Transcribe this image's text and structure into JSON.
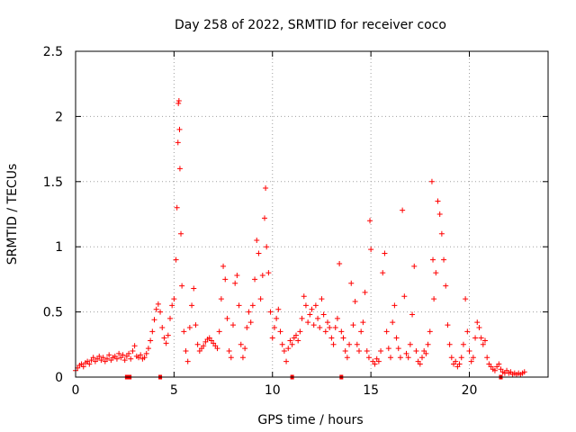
{
  "chart_data": {
    "type": "scatter",
    "title": "Day 258 of 2022, SRMTID for receiver coco",
    "xlabel": "GPS time / hours",
    "ylabel": "SRMTID / TECUs",
    "xlim": [
      0,
      24
    ],
    "ylim": [
      0,
      2.5
    ],
    "grid": true,
    "x_ticks": [
      "0",
      "5",
      "10",
      "15",
      "20"
    ],
    "y_ticks": [
      "0",
      "0.5",
      "1",
      "1.5",
      "2",
      "2.5"
    ],
    "marker_color": "#ff0000",
    "series": [
      {
        "name": "SRMTID",
        "marker": "plus",
        "points": [
          [
            0.0,
            0.05
          ],
          [
            0.1,
            0.07
          ],
          [
            0.2,
            0.09
          ],
          [
            0.3,
            0.1
          ],
          [
            0.4,
            0.08
          ],
          [
            0.5,
            0.11
          ],
          [
            0.6,
            0.12
          ],
          [
            0.7,
            0.1
          ],
          [
            0.8,
            0.13
          ],
          [
            0.9,
            0.15
          ],
          [
            1.0,
            0.12
          ],
          [
            1.1,
            0.14
          ],
          [
            1.2,
            0.16
          ],
          [
            1.3,
            0.13
          ],
          [
            1.4,
            0.15
          ],
          [
            1.5,
            0.12
          ],
          [
            1.6,
            0.14
          ],
          [
            1.7,
            0.17
          ],
          [
            1.8,
            0.13
          ],
          [
            1.9,
            0.15
          ],
          [
            2.0,
            0.16
          ],
          [
            2.1,
            0.14
          ],
          [
            2.2,
            0.18
          ],
          [
            2.3,
            0.15
          ],
          [
            2.4,
            0.17
          ],
          [
            2.5,
            0.13
          ],
          [
            2.6,
            0.16
          ],
          [
            2.7,
            0.18
          ],
          [
            2.8,
            0.14
          ],
          [
            2.9,
            0.2
          ],
          [
            3.0,
            0.24
          ],
          [
            3.1,
            0.16
          ],
          [
            3.2,
            0.15
          ],
          [
            3.3,
            0.17
          ],
          [
            3.4,
            0.14
          ],
          [
            3.5,
            0.15
          ],
          [
            3.6,
            0.18
          ],
          [
            3.7,
            0.22
          ],
          [
            3.8,
            0.28
          ],
          [
            3.9,
            0.35
          ],
          [
            4.0,
            0.44
          ],
          [
            4.1,
            0.52
          ],
          [
            4.2,
            0.56
          ],
          [
            4.3,
            0.5
          ],
          [
            4.4,
            0.38
          ],
          [
            4.5,
            0.3
          ],
          [
            4.6,
            0.26
          ],
          [
            4.7,
            0.32
          ],
          [
            4.8,
            0.45
          ],
          [
            4.9,
            0.55
          ],
          [
            5.0,
            0.6
          ],
          [
            5.1,
            0.9
          ],
          [
            5.15,
            1.3
          ],
          [
            5.2,
            1.8
          ],
          [
            5.22,
            2.1
          ],
          [
            5.25,
            2.12
          ],
          [
            5.28,
            1.9
          ],
          [
            5.3,
            1.6
          ],
          [
            5.35,
            1.1
          ],
          [
            5.4,
            0.7
          ],
          [
            5.5,
            0.35
          ],
          [
            5.6,
            0.2
          ],
          [
            5.7,
            0.12
          ],
          [
            5.8,
            0.38
          ],
          [
            5.9,
            0.55
          ],
          [
            6.0,
            0.68
          ],
          [
            6.1,
            0.4
          ],
          [
            6.2,
            0.25
          ],
          [
            6.3,
            0.2
          ],
          [
            6.4,
            0.22
          ],
          [
            6.5,
            0.24
          ],
          [
            6.6,
            0.27
          ],
          [
            6.7,
            0.29
          ],
          [
            6.8,
            0.3
          ],
          [
            6.9,
            0.28
          ],
          [
            7.0,
            0.26
          ],
          [
            7.1,
            0.24
          ],
          [
            7.2,
            0.22
          ],
          [
            7.3,
            0.35
          ],
          [
            7.4,
            0.6
          ],
          [
            7.5,
            0.85
          ],
          [
            7.6,
            0.75
          ],
          [
            7.7,
            0.45
          ],
          [
            7.8,
            0.2
          ],
          [
            7.9,
            0.15
          ],
          [
            8.0,
            0.4
          ],
          [
            8.1,
            0.72
          ],
          [
            8.2,
            0.78
          ],
          [
            8.3,
            0.55
          ],
          [
            8.4,
            0.25
          ],
          [
            8.5,
            0.15
          ],
          [
            8.6,
            0.22
          ],
          [
            8.7,
            0.38
          ],
          [
            8.8,
            0.5
          ],
          [
            8.9,
            0.42
          ],
          [
            9.0,
            0.55
          ],
          [
            9.1,
            0.75
          ],
          [
            9.2,
            1.05
          ],
          [
            9.3,
            0.95
          ],
          [
            9.4,
            0.6
          ],
          [
            9.5,
            0.78
          ],
          [
            9.6,
            1.22
          ],
          [
            9.65,
            1.45
          ],
          [
            9.7,
            1.0
          ],
          [
            9.8,
            0.8
          ],
          [
            9.9,
            0.5
          ],
          [
            10.0,
            0.3
          ],
          [
            10.1,
            0.38
          ],
          [
            10.2,
            0.45
          ],
          [
            10.3,
            0.52
          ],
          [
            10.4,
            0.35
          ],
          [
            10.5,
            0.25
          ],
          [
            10.6,
            0.2
          ],
          [
            10.7,
            0.12
          ],
          [
            10.8,
            0.22
          ],
          [
            10.9,
            0.28
          ],
          [
            11.0,
            0.25
          ],
          [
            11.1,
            0.3
          ],
          [
            11.2,
            0.32
          ],
          [
            11.3,
            0.28
          ],
          [
            11.4,
            0.35
          ],
          [
            11.5,
            0.45
          ],
          [
            11.6,
            0.62
          ],
          [
            11.7,
            0.55
          ],
          [
            11.8,
            0.42
          ],
          [
            11.9,
            0.48
          ],
          [
            12.0,
            0.52
          ],
          [
            12.1,
            0.4
          ],
          [
            12.2,
            0.55
          ],
          [
            12.3,
            0.45
          ],
          [
            12.4,
            0.38
          ],
          [
            12.5,
            0.6
          ],
          [
            12.6,
            0.48
          ],
          [
            12.7,
            0.35
          ],
          [
            12.8,
            0.42
          ],
          [
            12.9,
            0.38
          ],
          [
            13.0,
            0.3
          ],
          [
            13.1,
            0.25
          ],
          [
            13.2,
            0.38
          ],
          [
            13.3,
            0.45
          ],
          [
            13.4,
            0.87
          ],
          [
            13.5,
            0.35
          ],
          [
            13.6,
            0.3
          ],
          [
            13.7,
            0.2
          ],
          [
            13.8,
            0.15
          ],
          [
            13.9,
            0.25
          ],
          [
            14.0,
            0.72
          ],
          [
            14.1,
            0.4
          ],
          [
            14.2,
            0.58
          ],
          [
            14.3,
            0.25
          ],
          [
            14.4,
            0.2
          ],
          [
            14.5,
            0.35
          ],
          [
            14.6,
            0.42
          ],
          [
            14.7,
            0.65
          ],
          [
            14.8,
            0.2
          ],
          [
            14.9,
            0.15
          ],
          [
            14.95,
            1.2
          ],
          [
            15.0,
            0.98
          ],
          [
            15.1,
            0.12
          ],
          [
            15.2,
            0.1
          ],
          [
            15.3,
            0.14
          ],
          [
            15.4,
            0.12
          ],
          [
            15.5,
            0.2
          ],
          [
            15.6,
            0.8
          ],
          [
            15.7,
            0.95
          ],
          [
            15.8,
            0.35
          ],
          [
            15.9,
            0.22
          ],
          [
            16.0,
            0.15
          ],
          [
            16.1,
            0.42
          ],
          [
            16.2,
            0.55
          ],
          [
            16.3,
            0.3
          ],
          [
            16.4,
            0.22
          ],
          [
            16.5,
            0.15
          ],
          [
            16.6,
            1.28
          ],
          [
            16.7,
            0.62
          ],
          [
            16.8,
            0.18
          ],
          [
            16.9,
            0.15
          ],
          [
            17.0,
            0.25
          ],
          [
            17.1,
            0.48
          ],
          [
            17.2,
            0.85
          ],
          [
            17.3,
            0.2
          ],
          [
            17.4,
            0.12
          ],
          [
            17.5,
            0.1
          ],
          [
            17.6,
            0.15
          ],
          [
            17.7,
            0.2
          ],
          [
            17.8,
            0.18
          ],
          [
            17.9,
            0.25
          ],
          [
            18.0,
            0.35
          ],
          [
            18.1,
            1.5
          ],
          [
            18.15,
            0.9
          ],
          [
            18.2,
            0.6
          ],
          [
            18.3,
            0.8
          ],
          [
            18.4,
            1.35
          ],
          [
            18.5,
            1.25
          ],
          [
            18.6,
            1.1
          ],
          [
            18.7,
            0.9
          ],
          [
            18.8,
            0.7
          ],
          [
            18.9,
            0.4
          ],
          [
            19.0,
            0.25
          ],
          [
            19.1,
            0.15
          ],
          [
            19.2,
            0.1
          ],
          [
            19.3,
            0.12
          ],
          [
            19.4,
            0.08
          ],
          [
            19.5,
            0.1
          ],
          [
            19.6,
            0.15
          ],
          [
            19.7,
            0.25
          ],
          [
            19.8,
            0.6
          ],
          [
            19.9,
            0.35
          ],
          [
            20.0,
            0.2
          ],
          [
            20.1,
            0.12
          ],
          [
            20.2,
            0.15
          ],
          [
            20.3,
            0.3
          ],
          [
            20.4,
            0.42
          ],
          [
            20.5,
            0.38
          ],
          [
            20.6,
            0.3
          ],
          [
            20.7,
            0.25
          ],
          [
            20.8,
            0.28
          ],
          [
            20.9,
            0.15
          ],
          [
            21.0,
            0.1
          ],
          [
            21.1,
            0.08
          ],
          [
            21.2,
            0.06
          ],
          [
            21.3,
            0.05
          ],
          [
            21.4,
            0.08
          ],
          [
            21.5,
            0.1
          ],
          [
            21.6,
            0.06
          ],
          [
            21.7,
            0.04
          ],
          [
            21.8,
            0.03
          ],
          [
            21.9,
            0.05
          ],
          [
            22.0,
            0.03
          ],
          [
            22.1,
            0.04
          ],
          [
            22.2,
            0.02
          ],
          [
            22.3,
            0.03
          ],
          [
            22.4,
            0.02
          ],
          [
            22.5,
            0.03
          ],
          [
            22.6,
            0.02
          ],
          [
            22.7,
            0.03
          ],
          [
            22.8,
            0.04
          ]
        ]
      },
      {
        "name": "zero-level squares",
        "marker": "square",
        "points": [
          [
            2.6,
            0.0
          ],
          [
            2.75,
            0.0
          ],
          [
            4.3,
            0.0
          ],
          [
            11.0,
            0.0
          ],
          [
            13.5,
            0.0
          ],
          [
            21.6,
            0.0
          ]
        ]
      }
    ]
  }
}
